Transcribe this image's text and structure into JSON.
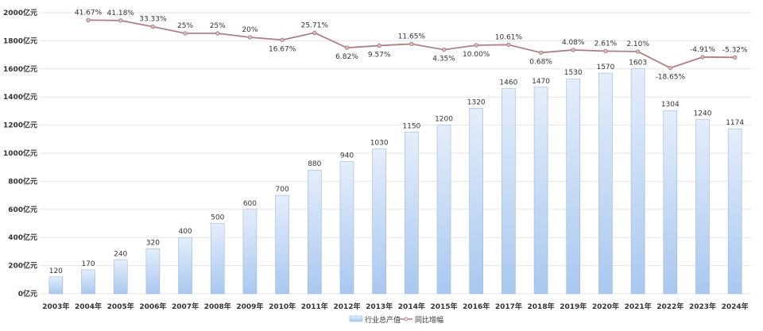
{
  "chart_data": {
    "type": "bar",
    "title": "",
    "categories": [
      "2003年",
      "2004年",
      "2005年",
      "2006年",
      "2007年",
      "2008年",
      "2009年",
      "2010年",
      "2011年",
      "2012年",
      "2013年",
      "2014年",
      "2015年",
      "2016年",
      "2017年",
      "2018年",
      "2019年",
      "2020年",
      "2021年",
      "2022年",
      "2023年",
      "2024年"
    ],
    "ylim": [
      0,
      2000
    ],
    "yticks": [
      "0亿元",
      "200亿元",
      "400亿元",
      "600亿元",
      "800亿元",
      "1000亿元",
      "1200亿元",
      "1400亿元",
      "1600亿元",
      "1800亿元",
      "2000亿元"
    ],
    "grid": true,
    "legend_position": "bottom",
    "series": [
      {
        "name": "行业总产值",
        "type": "bar",
        "color": "#c9dcf5",
        "values": [
          120,
          170,
          240,
          320,
          400,
          500,
          600,
          700,
          880,
          940,
          1030,
          1150,
          1200,
          1320,
          1460,
          1470,
          1530,
          1570,
          1603,
          1304,
          1240,
          1174
        ]
      },
      {
        "name": "同比增幅",
        "type": "line",
        "color": "#b07f86",
        "axis": "secondary",
        "ylim": [
          -303,
          51
        ],
        "values": [
          null,
          41.67,
          41.18,
          33.33,
          25,
          25,
          20,
          16.67,
          25.71,
          6.82,
          9.57,
          11.65,
          4.35,
          10.0,
          10.61,
          0.68,
          4.08,
          2.61,
          2.1,
          -18.65,
          -4.91,
          -5.32
        ],
        "labels": [
          "",
          "41.67%",
          "41.18%",
          "33.33%",
          "25%",
          "25%",
          "20%",
          "16.67%",
          "25.71%",
          "6.82%",
          "9.57%",
          "11.65%",
          "4.35%",
          "10.00%",
          "10.61%",
          "0.68%",
          "4.08%",
          "2.61%",
          "2.10%",
          "-18.65%",
          "-4.91%",
          "-5.32%"
        ]
      }
    ]
  }
}
